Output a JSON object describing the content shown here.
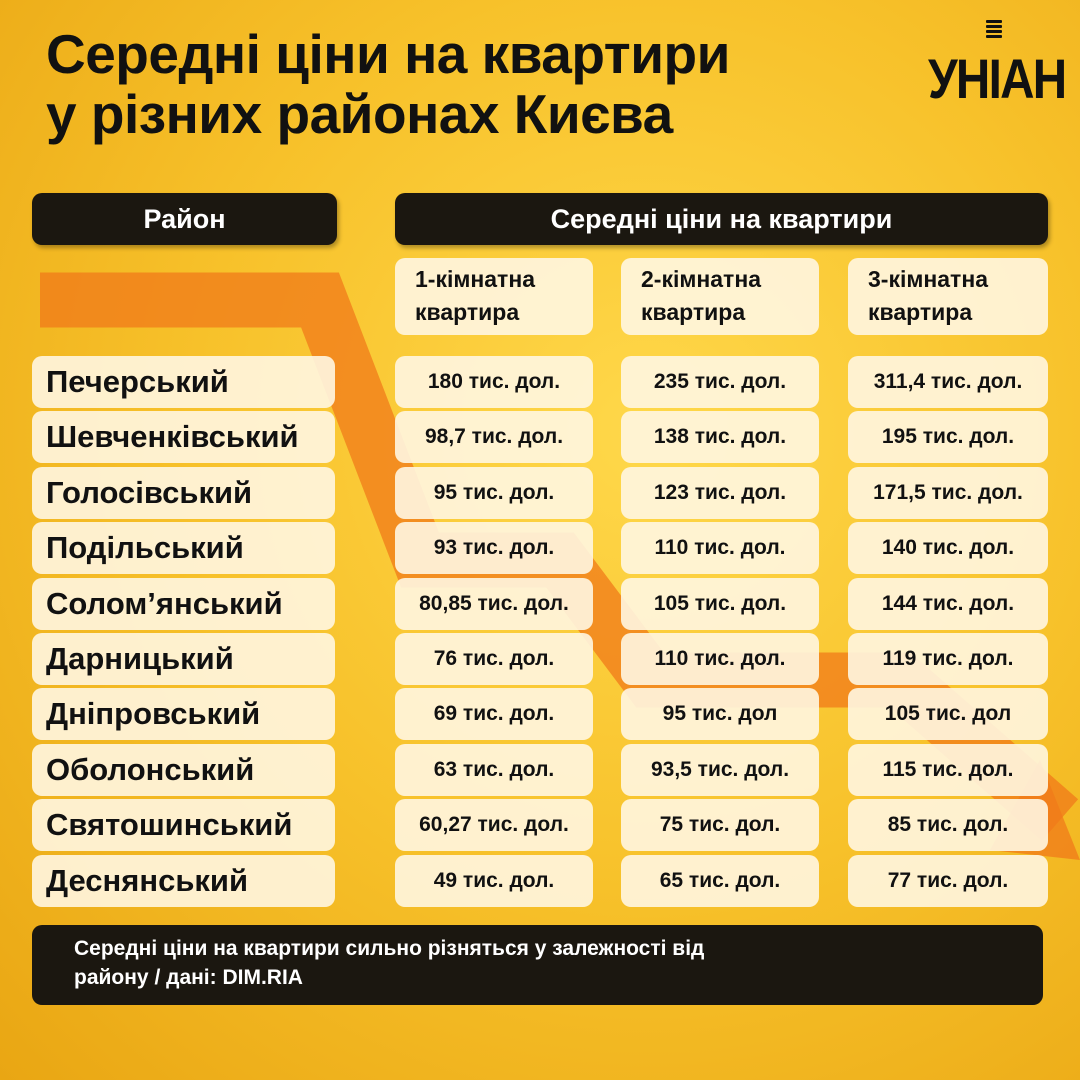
{
  "logo": "УНІАН",
  "colors": {
    "background": "#f7c12a",
    "header": "#1b1710",
    "cell": "#fff6e1",
    "arrow": "#f07a1a"
  },
  "chart_data": {
    "type": "table",
    "title": "Середні ціни на квартири\nу різних районах Києва",
    "header_district": "Район",
    "header_prices": "Середні ціни на квартири",
    "columns": [
      "1-кімнатна\nквартира",
      "2-кімнатна\nквартира",
      "3-кімнатна\nквартира"
    ],
    "rows": [
      {
        "district": "Печерський",
        "values": [
          "180 тис. дол.",
          "235 тис. дол.",
          "311,4 тис. дол."
        ]
      },
      {
        "district": "Шевченківський",
        "values": [
          "98,7 тис. дол.",
          "138 тис. дол.",
          "195 тис. дол."
        ]
      },
      {
        "district": "Голосівський",
        "values": [
          "95 тис. дол.",
          "123 тис. дол.",
          "171,5 тис. дол."
        ]
      },
      {
        "district": "Подільський",
        "values": [
          "93 тис. дол.",
          "110 тис. дол.",
          "140 тис. дол."
        ]
      },
      {
        "district": "Солом’янський",
        "values": [
          "80,85 тис. дол.",
          "105 тис. дол.",
          "144 тис. дол."
        ]
      },
      {
        "district": "Дарницький",
        "values": [
          "76 тис. дол.",
          "110 тис. дол.",
          "119 тис. дол."
        ]
      },
      {
        "district": "Дніпровський",
        "values": [
          "69 тис. дол.",
          "95 тис. дол",
          "105 тис. дол"
        ]
      },
      {
        "district": "Оболонський",
        "values": [
          "63 тис. дол.",
          "93,5 тис. дол.",
          "115 тис. дол."
        ]
      },
      {
        "district": "Святошинський",
        "values": [
          "60,27 тис. дол.",
          "75 тис. дол.",
          "85 тис. дол."
        ]
      },
      {
        "district": "Деснянський",
        "values": [
          "49 тис. дол.",
          "65 тис. дол.",
          "77 тис. дол."
        ]
      }
    ],
    "note": "Середні ціни на квартири сильно різняться у залежності від\nрайону / дані: DIM.RIA"
  }
}
